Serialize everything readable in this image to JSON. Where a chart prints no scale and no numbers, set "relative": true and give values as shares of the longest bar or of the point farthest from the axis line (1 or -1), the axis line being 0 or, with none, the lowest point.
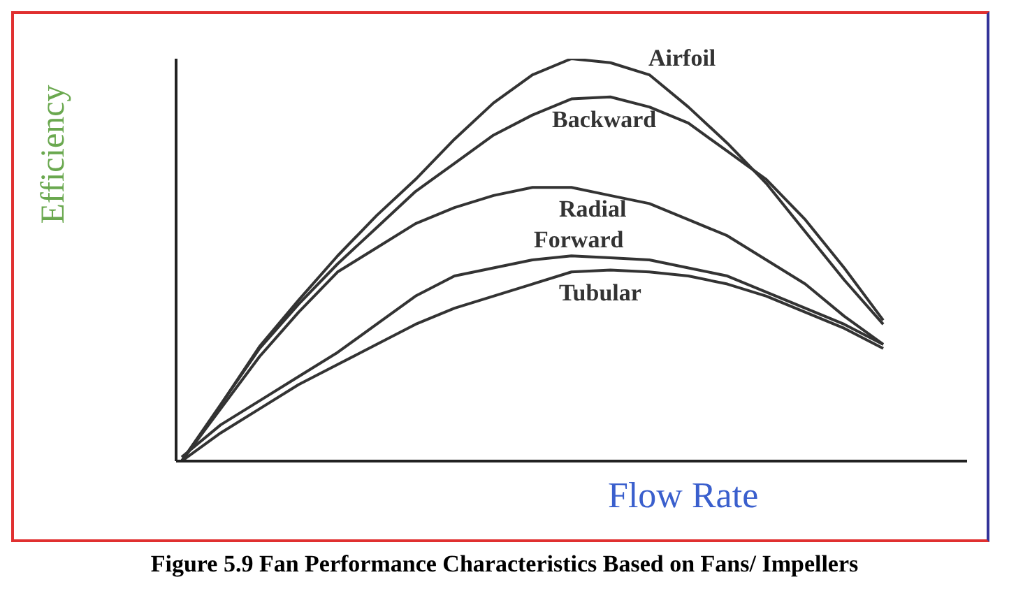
{
  "chart_data": {
    "type": "line",
    "title": "Figure 5.9 Fan Performance Characteristics Based on Fans/ Impellers",
    "xlabel": "Flow Rate",
    "ylabel": "Efficiency",
    "relative": true,
    "tick_labels": false,
    "marker": "none",
    "line_style": "solid",
    "grid": false,
    "legend": false,
    "categories": [
      null,
      null,
      null,
      null,
      null,
      null,
      null,
      null,
      null,
      null,
      null,
      null,
      null,
      null,
      null,
      null,
      null,
      null,
      null
    ],
    "series": [
      {
        "name": "Airfoil",
        "color": "#333333",
        "values": [
          0,
          0.14,
          0.285,
          0.4,
          0.51,
          0.61,
          0.7,
          0.8,
          0.89,
          0.96,
          1,
          0.99,
          0.96,
          0.88,
          0.79,
          0.69,
          0.57,
          0.45,
          0.34
        ]
      },
      {
        "name": "Backward",
        "color": "#333333",
        "values": [
          0,
          0.14,
          0.28,
          0.39,
          0.49,
          0.58,
          0.67,
          0.74,
          0.81,
          0.86,
          0.9,
          0.905,
          0.88,
          0.84,
          0.77,
          0.7,
          0.6,
          0.48,
          0.35
        ]
      },
      {
        "name": "Radial",
        "color": "#333333",
        "values": [
          0,
          0.13,
          0.26,
          0.37,
          0.47,
          0.53,
          0.59,
          0.63,
          0.66,
          0.68,
          0.68,
          0.66,
          0.64,
          0.6,
          0.56,
          0.5,
          0.44,
          0.36,
          0.29
        ]
      },
      {
        "name": "Forward",
        "color": "#333333",
        "values": [
          0.01,
          0.09,
          0.15,
          0.21,
          0.27,
          0.34,
          0.41,
          0.46,
          0.48,
          0.5,
          0.51,
          0.505,
          0.5,
          0.48,
          0.46,
          0.42,
          0.38,
          0.34,
          0.29
        ]
      },
      {
        "name": "Tubular",
        "color": "#333333",
        "values": [
          0,
          0.07,
          0.13,
          0.19,
          0.24,
          0.29,
          0.34,
          0.38,
          0.41,
          0.44,
          0.47,
          0.475,
          0.47,
          0.46,
          0.44,
          0.41,
          0.37,
          0.33,
          0.28
        ]
      }
    ]
  }
}
